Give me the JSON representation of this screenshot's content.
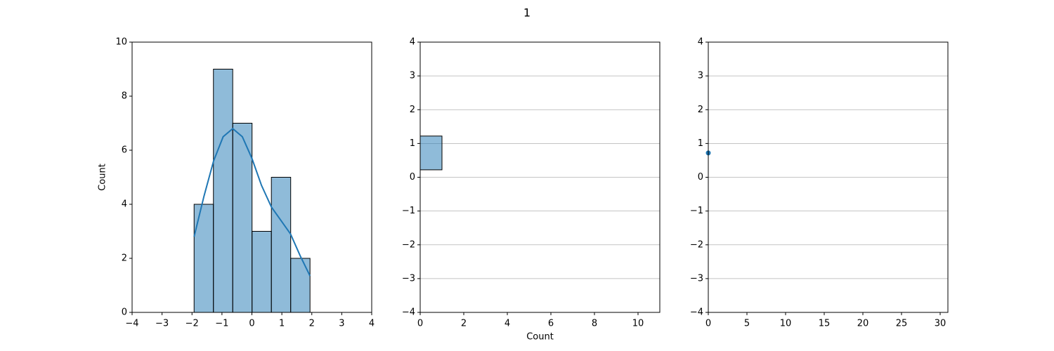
{
  "title": "1",
  "chart_data": [
    {
      "type": "histogram",
      "orientation": "vertical",
      "bins": [
        -1.93,
        -1.285,
        -0.64,
        0.005,
        0.65,
        1.295,
        1.94
      ],
      "counts": [
        4,
        9,
        7,
        3,
        5,
        2
      ],
      "kde": {
        "x": [
          -1.93,
          -1.6,
          -1.28,
          -0.96,
          -0.64,
          -0.32,
          0.0,
          0.32,
          0.65,
          0.97,
          1.29,
          1.61,
          1.94
        ],
        "y": [
          2.8,
          4.3,
          5.6,
          6.5,
          6.8,
          6.5,
          5.7,
          4.7,
          3.9,
          3.4,
          2.9,
          2.1,
          1.35
        ]
      },
      "color": "#1f77b4",
      "ylabel": "Count",
      "xlim": [
        -4,
        4
      ],
      "xticks": [
        {
          "value": -4,
          "label": "−4"
        },
        {
          "value": -3,
          "label": "−3"
        },
        {
          "value": -2,
          "label": "−2"
        },
        {
          "value": -1,
          "label": "−1"
        },
        0,
        1,
        2,
        3,
        4
      ],
      "ylim": [
        0,
        10
      ],
      "yticks": [
        0,
        2,
        4,
        6,
        8,
        10
      ],
      "grid": "none"
    },
    {
      "type": "histogram",
      "orientation": "horizontal",
      "bins": [
        0.22,
        1.22
      ],
      "counts": [
        1
      ],
      "color": "#1f77b4",
      "xlabel": "Count",
      "xlim": [
        0,
        11
      ],
      "xticks": [
        0,
        2,
        4,
        6,
        8,
        10
      ],
      "ylim": [
        -4,
        4
      ],
      "yticks": [
        {
          "value": -4,
          "label": "−4"
        },
        {
          "value": -3,
          "label": "−3"
        },
        {
          "value": -2,
          "label": "−2"
        },
        {
          "value": -1,
          "label": "−1"
        },
        0,
        1,
        2,
        3,
        4
      ],
      "grid": "y"
    },
    {
      "type": "scatter",
      "x": [
        0
      ],
      "y": [
        0.72
      ],
      "color": "#1f77b4",
      "xlim": [
        0,
        31
      ],
      "xticks": [
        0,
        5,
        10,
        15,
        20,
        25,
        30
      ],
      "ylim": [
        -4,
        4
      ],
      "yticks": [
        {
          "value": -4,
          "label": "−4"
        },
        {
          "value": -3,
          "label": "−3"
        },
        {
          "value": -2,
          "label": "−2"
        },
        {
          "value": -1,
          "label": "−1"
        },
        0,
        1,
        2,
        3,
        4
      ],
      "grid": "y"
    }
  ]
}
